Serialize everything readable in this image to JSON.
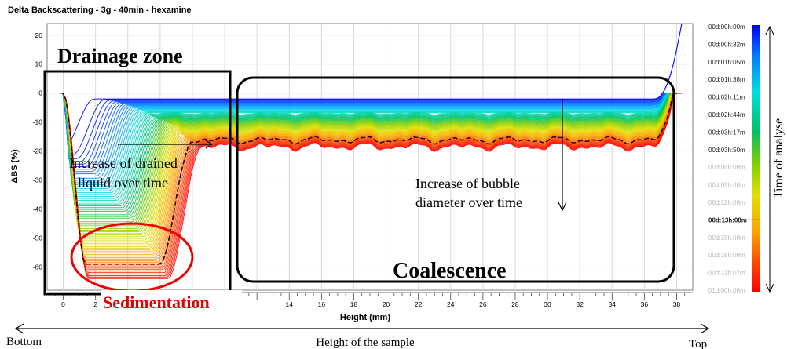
{
  "chart_data": {
    "type": "line",
    "title": "Delta Backscattering - 3g - 40min - hexamine",
    "xlabel": "Height (mm)",
    "ylabel": "ΔBS (%)",
    "xlim": [
      -1,
      39
    ],
    "ylim": [
      -68,
      24
    ],
    "x_ticks": [
      0,
      2,
      4,
      6,
      8,
      10,
      12,
      14,
      16,
      18,
      20,
      22,
      24,
      26,
      28,
      30,
      32,
      34,
      36,
      38
    ],
    "visible_x_tick_labels": [
      0,
      2,
      14,
      16,
      18,
      20,
      22,
      24,
      26,
      28,
      30,
      32,
      34,
      36,
      38
    ],
    "y_ticks": [
      20,
      10,
      0,
      -10,
      -20,
      -30,
      -40,
      -50,
      -60
    ],
    "grid": true,
    "time_legend": {
      "title": "Time of analyse",
      "labels": [
        "00d:00h:00m",
        "00d:00h:32m",
        "00d:01h:05m",
        "00d:01h:38m",
        "00d:02h:11m",
        "00d:02h:44m",
        "00d:03h:17m",
        "00d:03h:50m",
        "00d:06h:08m",
        "00d:09h:08m",
        "00d:12h:08m",
        "00d:13h:08m",
        "00d:15h:08m",
        "00d:18h:08m",
        "00d:21h:07m",
        "01d:00h:08m"
      ],
      "highlighted_label": "00d:13h:08m",
      "colorscale": [
        "#0000ff",
        "#0080ff",
        "#00e0e0",
        "#00c060",
        "#80d000",
        "#e0e000",
        "#ffa000",
        "#ff4000",
        "#ff0000"
      ]
    },
    "annotations": {
      "drainage_zone": "Drainage zone",
      "drained_liquid": [
        "Increase of drained",
        "liquid over time"
      ],
      "bubble_diameter": [
        "Increase of bubble",
        "diameter over time"
      ],
      "coalescence": "Coalescence",
      "sedimentation": "Sedimentation",
      "bottom": "Bottom",
      "top": "Top",
      "height_of_sample": "Height of the sample"
    }
  }
}
